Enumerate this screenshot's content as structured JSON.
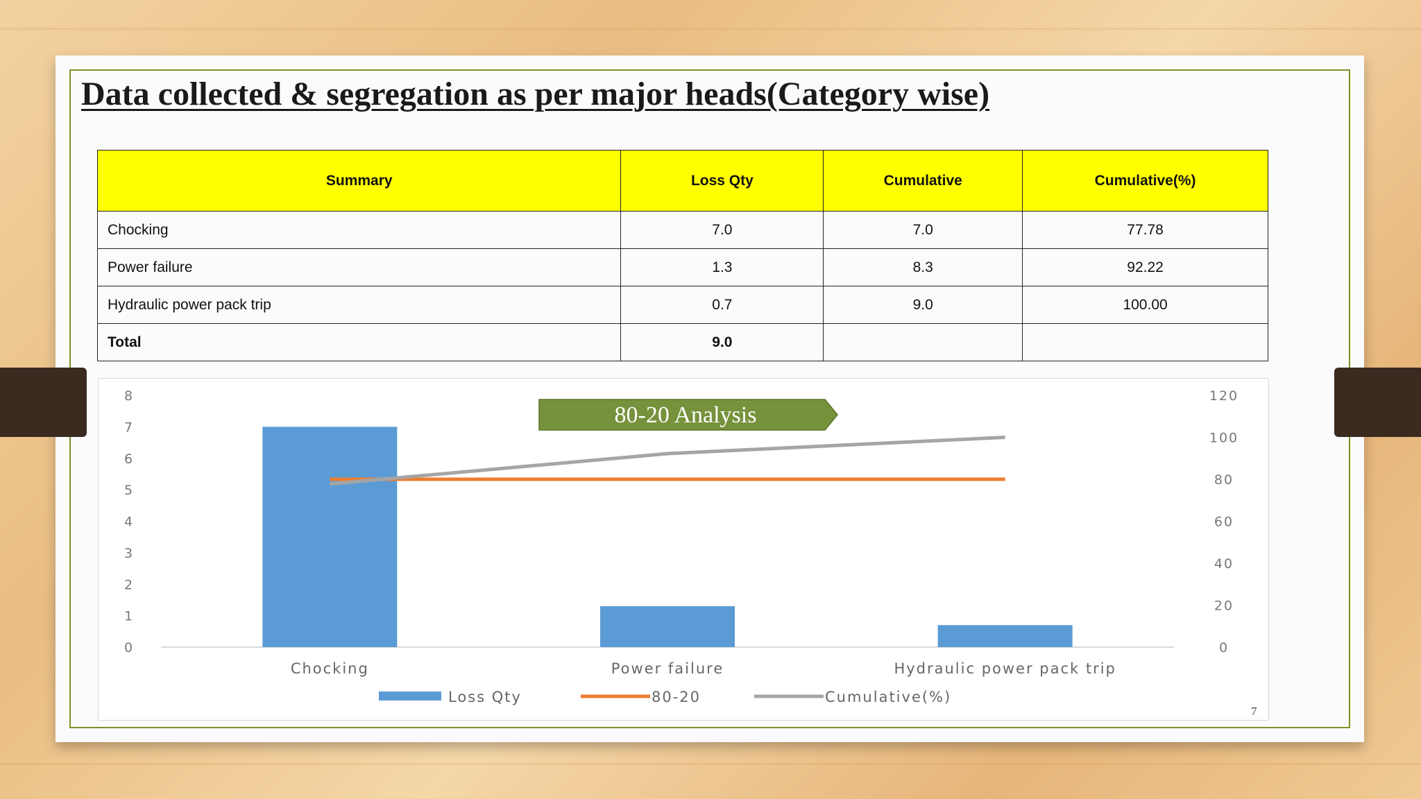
{
  "slide": {
    "title": "Data collected & segregation as per major heads(Category wise)",
    "page_number": "7"
  },
  "table": {
    "headers": [
      "Summary",
      "Loss Qty",
      "Cumulative",
      "Cumulative(%)"
    ],
    "rows": [
      [
        "Chocking",
        "7.0",
        "7.0",
        "77.78"
      ],
      [
        "Power failure",
        "1.3",
        "8.3",
        "92.22"
      ],
      [
        "Hydraulic power pack trip",
        "0.7",
        "9.0",
        "100.00"
      ],
      [
        "Total",
        "9.0",
        "",
        ""
      ]
    ]
  },
  "chart_data": {
    "type": "bar",
    "annotation": "80-20 Analysis",
    "categories": [
      "Chocking",
      "Power failure",
      "Hydraulic power pack trip"
    ],
    "series": [
      {
        "name": "Loss Qty",
        "type": "bar",
        "axis": "left",
        "values": [
          7.0,
          1.3,
          0.7
        ],
        "color": "#5b9bd5"
      },
      {
        "name": "80-20",
        "type": "line",
        "axis": "right",
        "values": [
          80,
          80,
          80
        ],
        "color": "#ed7d31"
      },
      {
        "name": "Cumulative(%)",
        "type": "line",
        "axis": "right",
        "values": [
          77.78,
          92.22,
          100.0
        ],
        "color": "#a5a5a5"
      }
    ],
    "y_left": {
      "min": 0,
      "max": 8,
      "ticks": [
        "0",
        "1",
        "2",
        "3",
        "4",
        "5",
        "6",
        "7",
        "8"
      ]
    },
    "y_right": {
      "min": 0,
      "max": 120,
      "ticks": [
        "0",
        "20",
        "40",
        "60",
        "80",
        "100",
        "120"
      ]
    },
    "legend": "bottom",
    "grid": false,
    "annotation_color": "#76923c"
  }
}
